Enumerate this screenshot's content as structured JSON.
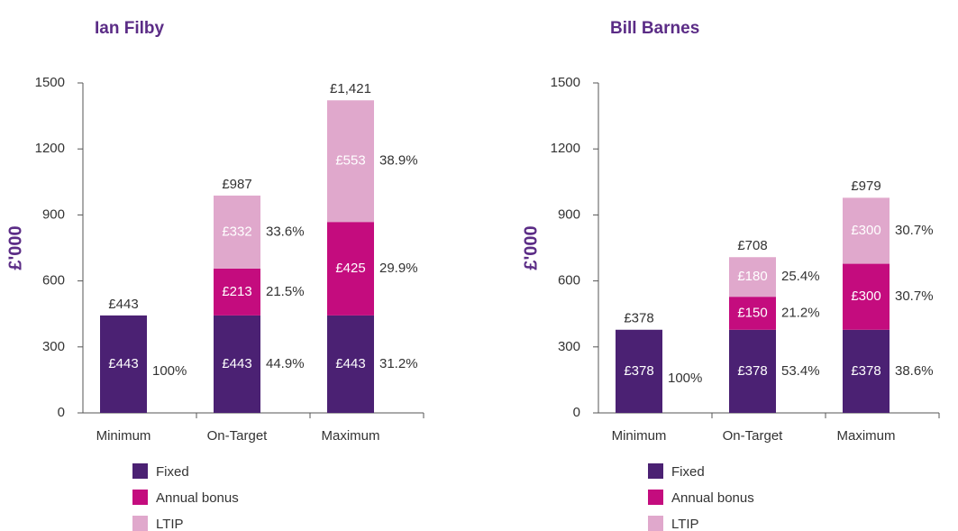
{
  "chart_data": [
    {
      "type": "stacked-bar",
      "title": "Ian Filby",
      "ylabel": "£'000",
      "categories": [
        "Minimum",
        "On-Target",
        "Maximum"
      ],
      "series": [
        {
          "name": "Fixed",
          "color": "#4b2173",
          "values": [
            443,
            443,
            443
          ],
          "value_labels": [
            "£443",
            "£443",
            "£443"
          ],
          "share_labels": [
            "100%",
            "44.9%",
            "31.2%"
          ]
        },
        {
          "name": "Annual bonus",
          "color": "#c40c7e",
          "values": [
            null,
            213,
            425
          ],
          "value_labels": [
            null,
            "£213",
            "£425"
          ],
          "share_labels": [
            null,
            "21.5%",
            "29.9%"
          ]
        },
        {
          "name": "LTIP",
          "color": "#e0a8cc",
          "values": [
            null,
            332,
            553
          ],
          "value_labels": [
            null,
            "£332",
            "£553"
          ],
          "share_labels": [
            null,
            "33.6%",
            "38.9%"
          ]
        }
      ],
      "totals": [
        443,
        987,
        1421
      ],
      "total_labels": [
        "£443",
        "£987",
        "£1,421"
      ],
      "ylim": [
        0,
        1500
      ],
      "yticks": [
        0,
        300,
        600,
        900,
        1200,
        1500
      ]
    },
    {
      "type": "stacked-bar",
      "title": "Bill Barnes",
      "ylabel": "£'000",
      "categories": [
        "Minimum",
        "On-Target",
        "Maximum"
      ],
      "series": [
        {
          "name": "Fixed",
          "color": "#4b2173",
          "values": [
            378,
            378,
            378
          ],
          "value_labels": [
            "£378",
            "£378",
            "£378"
          ],
          "share_labels": [
            "100%",
            "53.4%",
            "38.6%"
          ]
        },
        {
          "name": "Annual bonus",
          "color": "#c40c7e",
          "values": [
            null,
            150,
            300
          ],
          "value_labels": [
            null,
            "£150",
            "£300"
          ],
          "share_labels": [
            null,
            "21.2%",
            "30.7%"
          ]
        },
        {
          "name": "LTIP",
          "color": "#e0a8cc",
          "values": [
            null,
            180,
            300
          ],
          "value_labels": [
            null,
            "£180",
            "£300"
          ],
          "share_labels": [
            null,
            "25.4%",
            "30.7%"
          ]
        }
      ],
      "totals": [
        378,
        708,
        979
      ],
      "total_labels": [
        "£378",
        "£708",
        "£979"
      ],
      "ylim": [
        0,
        1500
      ],
      "yticks": [
        0,
        300,
        600,
        900,
        1200,
        1500
      ]
    }
  ]
}
